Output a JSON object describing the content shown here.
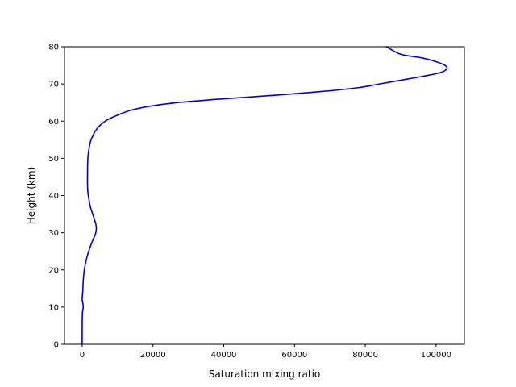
{
  "chart_data": {
    "type": "line",
    "title": "",
    "xlabel": "Saturation mixing ratio",
    "ylabel": "Height (km)",
    "xlim": [
      -5000,
      108000
    ],
    "ylim": [
      0,
      80
    ],
    "xticks": [
      0,
      20000,
      40000,
      60000,
      80000,
      100000
    ],
    "xtick_labels": [
      "0",
      "20000",
      "40000",
      "60000",
      "80000",
      "100000"
    ],
    "yticks": [
      0,
      10,
      20,
      30,
      40,
      50,
      60,
      70,
      80
    ],
    "ytick_labels": [
      "0",
      "10",
      "20",
      "30",
      "40",
      "50",
      "60",
      "70",
      "80"
    ],
    "grid": false,
    "colors": {
      "line": "#0000dd",
      "axes": "#000000",
      "background": "#ffffff"
    },
    "series": [
      {
        "x": [
          0,
          0,
          50,
          150,
          300,
          200,
          0,
          50,
          150,
          300,
          600,
          1000,
          1500,
          2200,
          3000,
          3700,
          4000,
          3800,
          3300,
          2800,
          2300,
          1900,
          1600,
          1500,
          1500,
          1550,
          1700,
          2000,
          2500,
          3000,
          3500,
          4200,
          5200,
          6500,
          8500,
          11000,
          14000,
          19000,
          27000,
          40000,
          55000,
          68000,
          78000,
          84000,
          90000,
          96000,
          101000,
          103000,
          102500,
          100000,
          96000,
          90000,
          86000
        ],
        "y": [
          0,
          5,
          8,
          9,
          10,
          11,
          12,
          13,
          14,
          17,
          20,
          22,
          24,
          26,
          28,
          29.5,
          31,
          32.5,
          34,
          35.5,
          37,
          39,
          41,
          43,
          46,
          49,
          51,
          53,
          55,
          56,
          57,
          58,
          59,
          60,
          61,
          62,
          63,
          64,
          65,
          66,
          67,
          68,
          69,
          70,
          71,
          72,
          73,
          74,
          75,
          76,
          77,
          78,
          80
        ]
      }
    ]
  }
}
